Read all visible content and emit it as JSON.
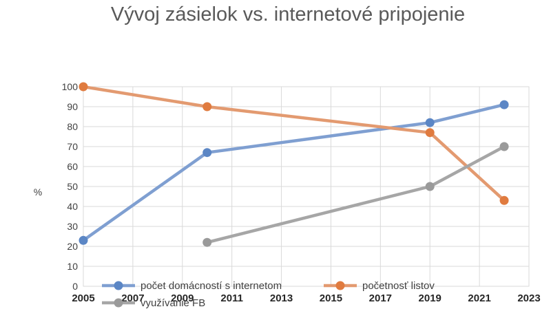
{
  "chart_data": {
    "type": "line",
    "title": "Vývoj zásielok vs. internetové pripojenie",
    "ylabel": "%",
    "xlabel": "",
    "xlim": [
      2005,
      2023
    ],
    "ylim": [
      0,
      100
    ],
    "x_ticks": [
      "2005",
      "2007",
      "2009",
      "2011",
      "2013",
      "2015",
      "2017",
      "2019",
      "2021",
      "2023"
    ],
    "y_ticks": [
      "0",
      "10",
      "20",
      "30",
      "40",
      "50",
      "60",
      "70",
      "80",
      "90",
      "100"
    ],
    "grid": true,
    "legend_position": "bottom",
    "series": [
      {
        "name": "počet domácností s internetom",
        "color": "#7f9fd1",
        "marker_color": "#5b86c5",
        "points": [
          [
            2005,
            23
          ],
          [
            2010,
            67
          ],
          [
            2019,
            82
          ],
          [
            2022,
            91
          ]
        ]
      },
      {
        "name": "početnosť listov",
        "color": "#e39a70",
        "marker_color": "#e07b3f",
        "points": [
          [
            2005,
            100
          ],
          [
            2010,
            90
          ],
          [
            2019,
            77
          ],
          [
            2022,
            43
          ]
        ]
      },
      {
        "name": "využívanie FB",
        "color": "#a6a6a6",
        "marker_color": "#9a9a9a",
        "points": [
          [
            2010,
            22
          ],
          [
            2019,
            50
          ],
          [
            2022,
            70
          ]
        ]
      }
    ]
  }
}
